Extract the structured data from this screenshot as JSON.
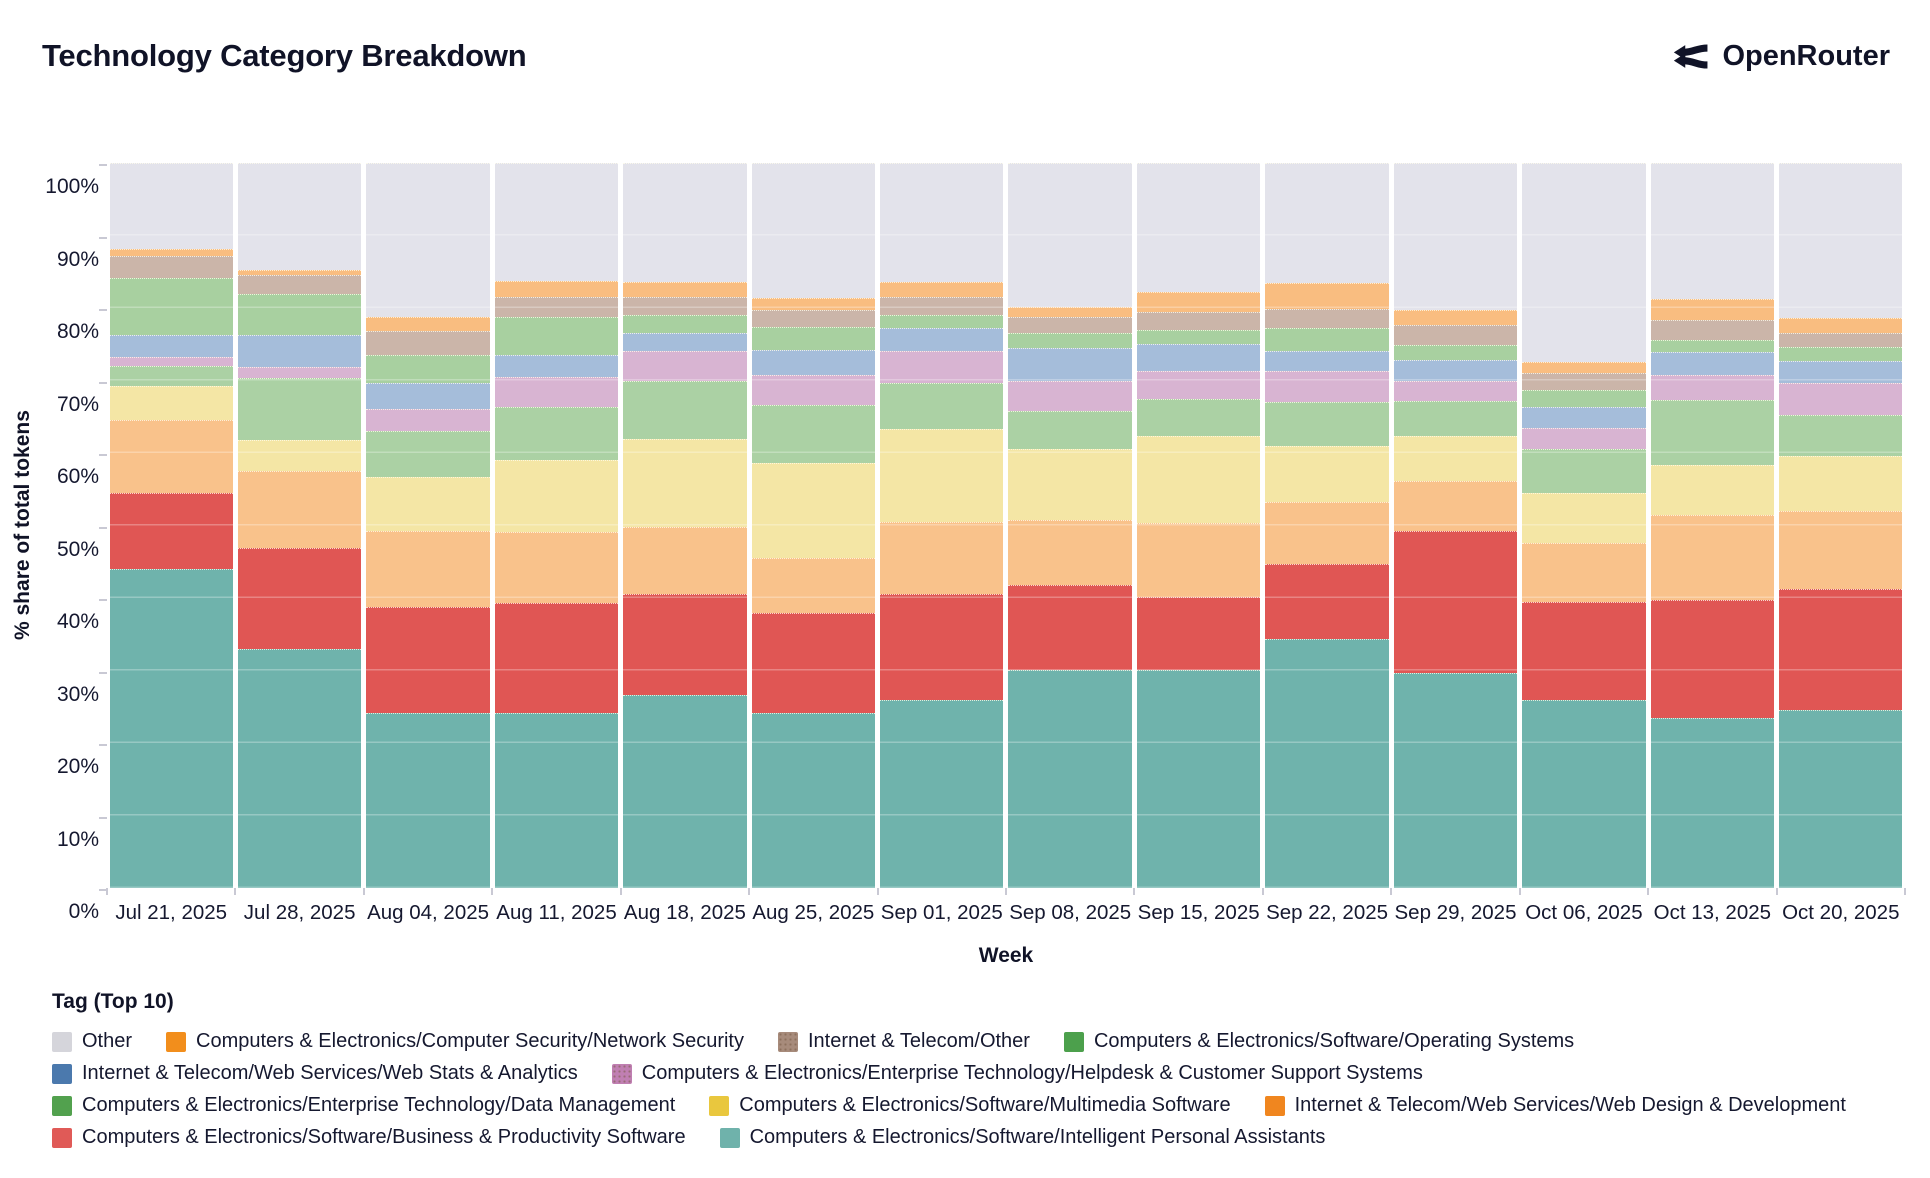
{
  "header": {
    "title": "Technology Category Breakdown",
    "brand": "OpenRouter"
  },
  "chart_data": {
    "type": "bar",
    "stacked": true,
    "percent": true,
    "title": "Technology Category Breakdown",
    "xlabel": "Week",
    "ylabel": "% share of total tokens",
    "ylim": [
      0,
      100
    ],
    "ytick_step": 10,
    "ytick_labels": [
      "0%",
      "10%",
      "20%",
      "30%",
      "40%",
      "50%",
      "60%",
      "70%",
      "80%",
      "90%",
      "100%"
    ],
    "legend_title": "Tag (Top 10)",
    "x": [
      "Jul 21, 2025",
      "Jul 28, 2025",
      "Aug 04, 2025",
      "Aug 11, 2025",
      "Aug 18, 2025",
      "Aug 25, 2025",
      "Sep 01, 2025",
      "Sep 08, 2025",
      "Sep 15, 2025",
      "Sep 22, 2025",
      "Sep 29, 2025",
      "Oct 06, 2025",
      "Oct 13, 2025",
      "Oct 20, 2025"
    ],
    "series_note": "series listed bottom-to-top of stack; legend displays reverse order; values are % share per week",
    "series": [
      {
        "name": "Computers & Electronics/Software/Intelligent Personal Assistants",
        "color": "#6fb2ab",
        "fill": "#6fb3ac",
        "pattern": false,
        "values": [
          44.0,
          33.0,
          24.1,
          24.2,
          26.6,
          24.1,
          25.9,
          30.1,
          30.1,
          34.4,
          29.6,
          26.0,
          23.4,
          24.5
        ]
      },
      {
        "name": "Computers & Electronics/Software/Business & Productivity Software",
        "color": "#e05a57",
        "fill": "#e05654",
        "pattern": false,
        "values": [
          10.5,
          13.9,
          14.7,
          15.1,
          13.9,
          13.9,
          14.6,
          11.7,
          10.1,
          10.3,
          19.7,
          13.5,
          16.3,
          16.7
        ]
      },
      {
        "name": "Internet & Telecom/Web Services/Web Design & Development",
        "color": "#f0861f",
        "fill": "#f9c28b",
        "pattern": false,
        "values": [
          10.0,
          10.6,
          10.5,
          9.8,
          9.3,
          7.5,
          10.0,
          8.9,
          10.2,
          8.5,
          6.9,
          8.1,
          11.8,
          10.8
        ]
      },
      {
        "name": "Computers & Electronics/Software/Multimedia Software",
        "color": "#e9c73e",
        "fill": "#f4e6a5",
        "pattern": false,
        "values": [
          4.8,
          4.3,
          7.4,
          9.9,
          12.2,
          13.1,
          12.8,
          9.8,
          12.0,
          7.8,
          6.2,
          6.9,
          6.9,
          7.6
        ]
      },
      {
        "name": "Computers & Electronics/Enterprise Technology/Data Management",
        "color": "#52a14e",
        "fill": "#abd1a4",
        "pattern": false,
        "values": [
          2.7,
          8.5,
          6.4,
          7.4,
          8.0,
          8.0,
          6.4,
          5.3,
          5.0,
          6.0,
          4.8,
          6.0,
          8.9,
          5.7
        ]
      },
      {
        "name": "Computers & Electronics/Enterprise Technology/Helpdesk & Customer Support Systems",
        "color": "#c07fb2",
        "fill": "#d8b4d2",
        "pattern": true,
        "values": [
          1.3,
          1.5,
          3.0,
          4.1,
          4.1,
          4.1,
          4.4,
          4.1,
          3.9,
          4.3,
          2.7,
          2.9,
          3.5,
          4.3
        ]
      },
      {
        "name": "Internet & Telecom/Web Services/Web Stats & Analytics",
        "color": "#4b79ad",
        "fill": "#a5bdda",
        "pattern": false,
        "values": [
          3.0,
          4.5,
          3.5,
          3.0,
          2.5,
          3.5,
          3.1,
          4.6,
          3.7,
          2.8,
          3.0,
          2.9,
          3.1,
          3.1
        ]
      },
      {
        "name": "Computers & Electronics/Software/Operating Systems",
        "color": "#4ca04c",
        "fill": "#a8d0a0",
        "pattern": false,
        "values": [
          7.9,
          5.7,
          3.9,
          5.3,
          2.5,
          3.2,
          1.9,
          2.1,
          2.0,
          3.2,
          2.0,
          2.4,
          1.7,
          1.9
        ]
      },
      {
        "name": "Internet & Telecom/Other",
        "color": "#a78b7b",
        "fill": "#cbb5a9",
        "pattern": true,
        "values": [
          3.0,
          2.5,
          3.4,
          2.7,
          2.4,
          2.3,
          2.4,
          2.2,
          2.5,
          2.5,
          2.7,
          2.3,
          2.7,
          1.9
        ]
      },
      {
        "name": "Computers & Electronics/Computer Security/Network Security",
        "color": "#f28e1c",
        "fill": "#f9bd80",
        "pattern": false,
        "values": [
          1.0,
          0.8,
          1.9,
          2.3,
          2.1,
          1.7,
          2.1,
          1.4,
          2.7,
          3.6,
          2.1,
          1.5,
          3.0,
          2.1
        ]
      },
      {
        "name": "Other",
        "color": "#d5d5db",
        "fill": "#e3e3eb",
        "pattern": false,
        "values": [
          11.8,
          14.7,
          21.2,
          16.2,
          16.4,
          18.6,
          16.4,
          19.8,
          17.8,
          16.6,
          20.3,
          27.5,
          18.7,
          21.4
        ]
      }
    ]
  }
}
